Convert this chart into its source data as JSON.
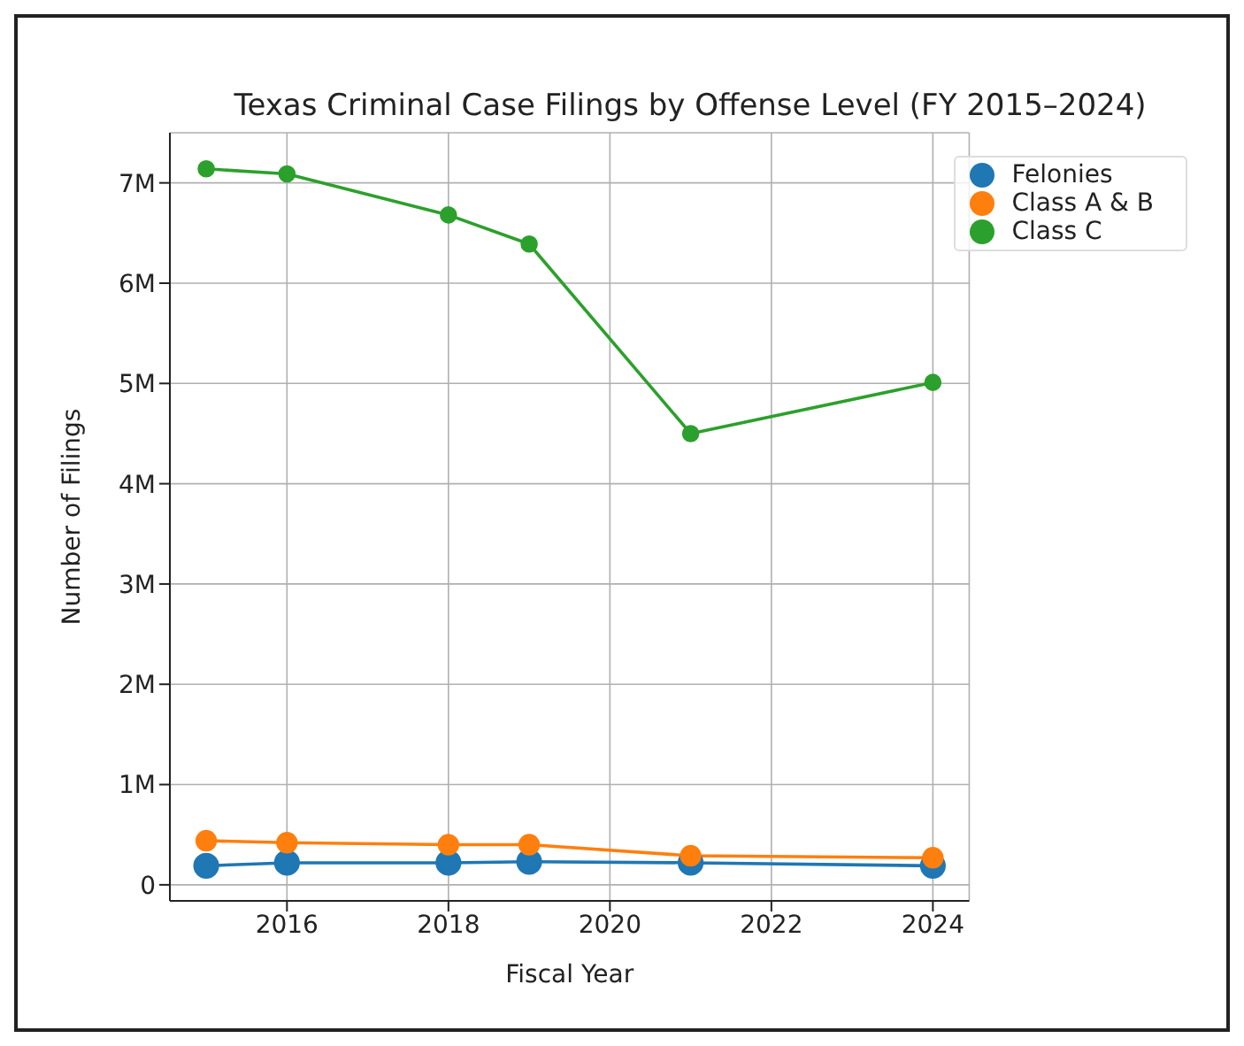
{
  "chart_data": {
    "type": "line",
    "title": "Texas Criminal Case Filings by Offense Level (FY 2015–2024)",
    "xlabel": "Fiscal Year",
    "ylabel": "Number of Filings",
    "x": [
      2015,
      2016,
      2018,
      2019,
      2021,
      2024
    ],
    "series": [
      {
        "name": "Felonies",
        "color": "#1f77b4",
        "values": [
          0.19,
          0.22,
          0.22,
          0.23,
          0.22,
          0.19
        ]
      },
      {
        "name": "Class A & B",
        "color": "#ff7f0e",
        "values": [
          0.44,
          0.42,
          0.4,
          0.4,
          0.29,
          0.27
        ]
      },
      {
        "name": "Class C",
        "color": "#2ca02c",
        "values": [
          7.14,
          7.09,
          6.68,
          6.39,
          4.5,
          5.01
        ]
      }
    ],
    "xlim": [
      2014.55,
      2024.45
    ],
    "xticks": [
      2016,
      2018,
      2020,
      2022,
      2024
    ],
    "ylim": [
      -0.16,
      7.5
    ],
    "yticks": [
      0,
      {
        "value": 1,
        "label": "1M"
      },
      {
        "value": 2,
        "label": "2M"
      },
      {
        "value": 3,
        "label": "3M"
      },
      {
        "value": 4,
        "label": "4M"
      },
      {
        "value": 5,
        "label": "5M"
      },
      {
        "value": 6,
        "label": "6M"
      },
      {
        "value": 7,
        "label": "7M"
      }
    ],
    "grid": true,
    "legend": "top right",
    "marker": "circle",
    "line_style": "solid"
  }
}
